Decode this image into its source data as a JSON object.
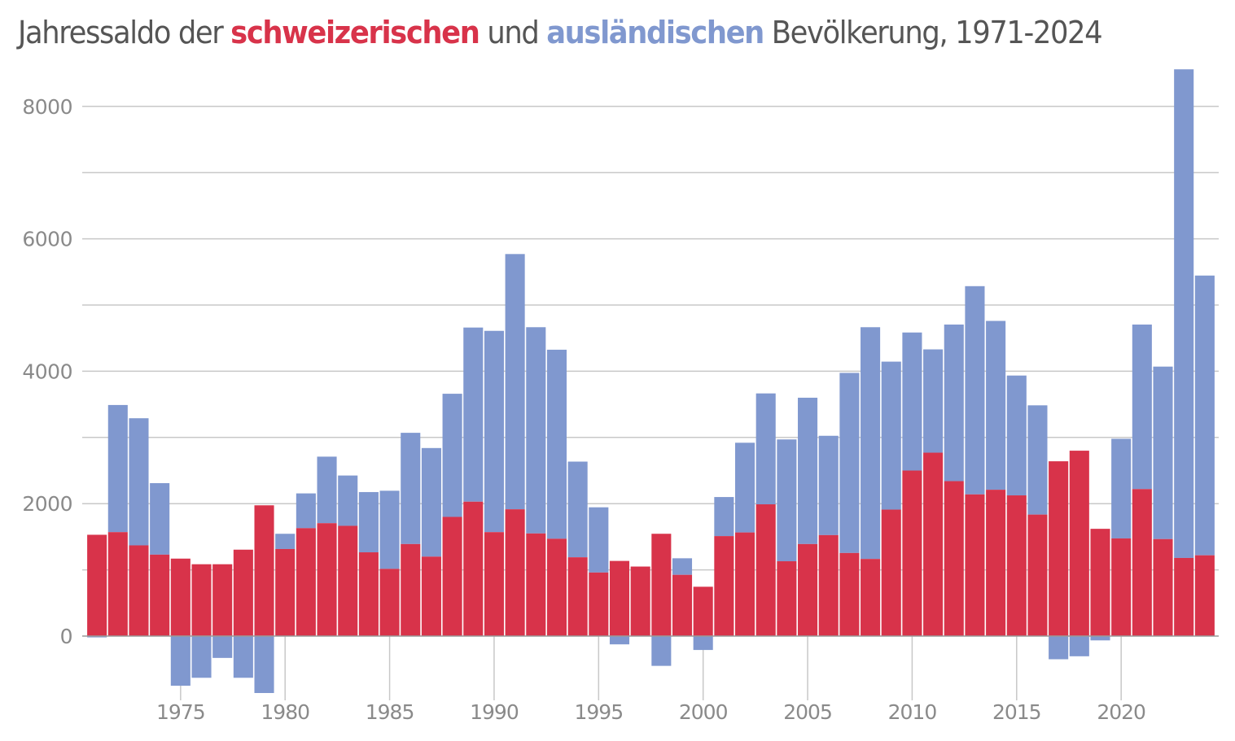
{
  "title": {
    "part1": "Jahressaldo der ",
    "swiss_word": "schweizerischen",
    "part2": " und ",
    "foreign_word": "ausländischen",
    "part3": " Bevölkerung, 1971-2024"
  },
  "colors": {
    "swiss": "#d8334a",
    "foreign": "#8098cf",
    "title_text": "#555555",
    "axis_text": "#8a8a8a",
    "grid": "#c8c8c8",
    "zero_line": "#999999"
  },
  "chart_data": {
    "type": "bar",
    "stacked": true,
    "title": "Jahressaldo der schweizerischen und ausländischen Bevölkerung, 1971-2024",
    "xlabel": "",
    "ylabel": "",
    "ylim": [
      -870,
      8600
    ],
    "xlim": [
      1970.5,
      2024.5
    ],
    "grid": true,
    "legend": "in-title",
    "yticks": [
      0,
      2000,
      4000,
      6000,
      8000
    ],
    "ytick_labels": [
      "0",
      "2000",
      "4000",
      "6000",
      "8000"
    ],
    "minor_gridlines": [
      1000,
      3000,
      5000,
      7000
    ],
    "xticks": [
      1975,
      1980,
      1985,
      1990,
      1995,
      2000,
      2005,
      2010,
      2015,
      2020
    ],
    "xtick_labels": [
      "1975",
      "1980",
      "1985",
      "1990",
      "1995",
      "2000",
      "2005",
      "2010",
      "2015",
      "2020"
    ],
    "categories": [
      1971,
      1972,
      1973,
      1974,
      1975,
      1976,
      1977,
      1978,
      1979,
      1980,
      1981,
      1982,
      1983,
      1984,
      1985,
      1986,
      1987,
      1988,
      1989,
      1990,
      1991,
      1992,
      1993,
      1994,
      1995,
      1996,
      1997,
      1998,
      1999,
      2000,
      2001,
      2002,
      2003,
      2004,
      2005,
      2006,
      2007,
      2008,
      2009,
      2010,
      2011,
      2012,
      2013,
      2014,
      2015,
      2016,
      2017,
      2018,
      2019,
      2020,
      2021,
      2022,
      2023,
      2024
    ],
    "series": [
      {
        "name": "schweizerische Bevölkerung",
        "color": "#d8334a",
        "values": [
          1530,
          1570,
          1370,
          1230,
          1170,
          1085,
          1085,
          1305,
          1975,
          1315,
          1630,
          1705,
          1665,
          1265,
          1015,
          1390,
          1200,
          1800,
          2030,
          1570,
          1915,
          1550,
          1470,
          1190,
          960,
          1135,
          1050,
          1545,
          925,
          745,
          1510,
          1565,
          1990,
          1130,
          1390,
          1525,
          1255,
          1165,
          1910,
          2500,
          2770,
          2340,
          2140,
          2210,
          2125,
          1835,
          2640,
          2800,
          1620,
          1475,
          2220,
          1465,
          1180,
          1220
        ]
      },
      {
        "name": "ausländische Bevölkerung",
        "color": "#8098cf",
        "values": [
          -20,
          1920,
          1920,
          1080,
          -750,
          -630,
          -330,
          -630,
          -860,
          230,
          525,
          1005,
          760,
          910,
          1180,
          1680,
          1640,
          1860,
          2630,
          3040,
          3855,
          3115,
          2855,
          1445,
          985,
          -125,
          0,
          -450,
          250,
          -210,
          590,
          1355,
          1675,
          1840,
          2210,
          1500,
          2720,
          3500,
          2235,
          2085,
          1560,
          2365,
          3145,
          2550,
          1810,
          1650,
          -350,
          -305,
          -65,
          1505,
          2485,
          2605,
          7380,
          4225
        ]
      }
    ]
  }
}
